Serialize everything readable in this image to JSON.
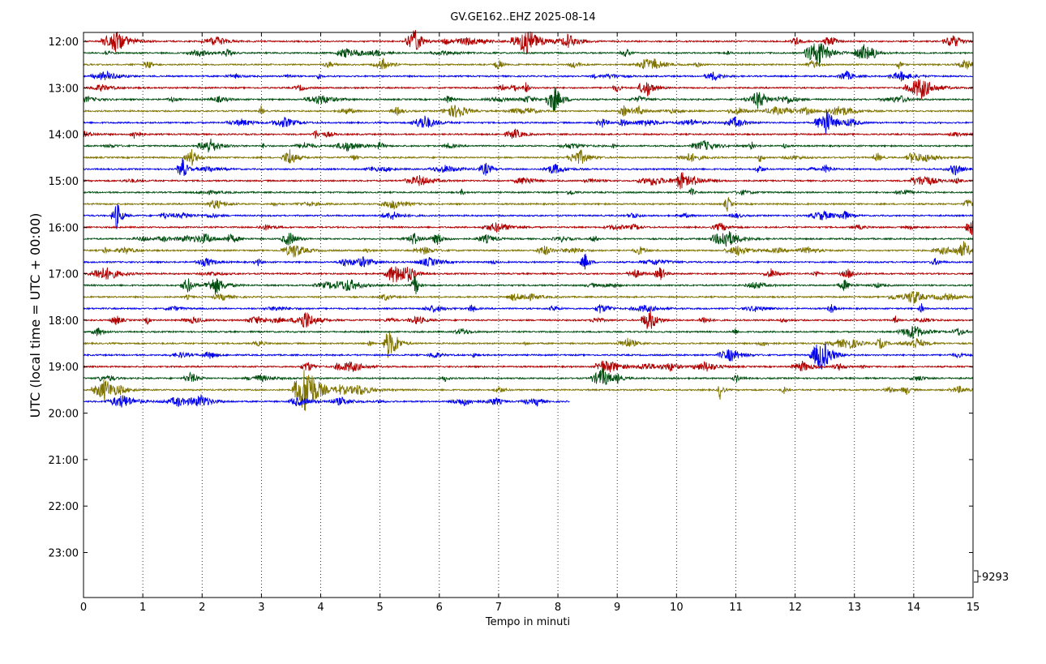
{
  "chart_data": {
    "type": "line",
    "title": "GV.GE162..EHZ 2025-08-14",
    "xlabel": "Tempo in minuti",
    "ylabel": "UTC (local time = UTC + 00:00)",
    "xlim": [
      0,
      15
    ],
    "x_ticks": [
      "0",
      "1",
      "2",
      "3",
      "4",
      "5",
      "6",
      "7",
      "8",
      "9",
      "10",
      "11",
      "12",
      "13",
      "14",
      "15"
    ],
    "y_ticks": [
      "12:00",
      "13:00",
      "14:00",
      "15:00",
      "16:00",
      "17:00",
      "18:00",
      "19:00",
      "20:00",
      "21:00",
      "22:00",
      "23:00"
    ],
    "scale_label": "9293",
    "grid": "vertical dotted",
    "colors": [
      "#b00000",
      "#004f10",
      "#7f7300",
      "#0000ee"
    ],
    "trace_interval_minutes": 15,
    "series": [
      {
        "start": "12:00",
        "end_minute": 15,
        "color": "#b00000"
      },
      {
        "start": "12:15",
        "end_minute": 15,
        "color": "#004f10"
      },
      {
        "start": "12:30",
        "end_minute": 15,
        "color": "#7f7300"
      },
      {
        "start": "12:45",
        "end_minute": 15,
        "color": "#0000ee"
      },
      {
        "start": "13:00",
        "end_minute": 15,
        "color": "#b00000"
      },
      {
        "start": "13:15",
        "end_minute": 15,
        "color": "#004f10"
      },
      {
        "start": "13:30",
        "end_minute": 15,
        "color": "#7f7300"
      },
      {
        "start": "13:45",
        "end_minute": 15,
        "color": "#0000ee"
      },
      {
        "start": "14:00",
        "end_minute": 15,
        "color": "#b00000"
      },
      {
        "start": "14:15",
        "end_minute": 15,
        "color": "#004f10"
      },
      {
        "start": "14:30",
        "end_minute": 15,
        "color": "#7f7300"
      },
      {
        "start": "14:45",
        "end_minute": 15,
        "color": "#0000ee"
      },
      {
        "start": "15:00",
        "end_minute": 15,
        "color": "#b00000"
      },
      {
        "start": "15:15",
        "end_minute": 15,
        "color": "#004f10"
      },
      {
        "start": "15:30",
        "end_minute": 15,
        "color": "#7f7300"
      },
      {
        "start": "15:45",
        "end_minute": 15,
        "color": "#0000ee"
      },
      {
        "start": "16:00",
        "end_minute": 15,
        "color": "#b00000"
      },
      {
        "start": "16:15",
        "end_minute": 15,
        "color": "#004f10"
      },
      {
        "start": "16:30",
        "end_minute": 15,
        "color": "#7f7300"
      },
      {
        "start": "16:45",
        "end_minute": 15,
        "color": "#0000ee"
      },
      {
        "start": "17:00",
        "end_minute": 15,
        "color": "#b00000"
      },
      {
        "start": "17:15",
        "end_minute": 15,
        "color": "#004f10"
      },
      {
        "start": "17:30",
        "end_minute": 15,
        "color": "#7f7300"
      },
      {
        "start": "17:45",
        "end_minute": 15,
        "color": "#0000ee"
      },
      {
        "start": "18:00",
        "end_minute": 15,
        "color": "#b00000"
      },
      {
        "start": "18:15",
        "end_minute": 15,
        "color": "#004f10"
      },
      {
        "start": "18:30",
        "end_minute": 15,
        "color": "#7f7300"
      },
      {
        "start": "18:45",
        "end_minute": 15,
        "color": "#0000ee"
      },
      {
        "start": "19:00",
        "end_minute": 15,
        "color": "#b00000"
      },
      {
        "start": "19:15",
        "end_minute": 15,
        "color": "#004f10"
      },
      {
        "start": "19:30",
        "end_minute": 15,
        "color": "#7f7300"
      },
      {
        "start": "19:45",
        "end_minute": 8.2,
        "color": "#0000ee"
      }
    ]
  }
}
